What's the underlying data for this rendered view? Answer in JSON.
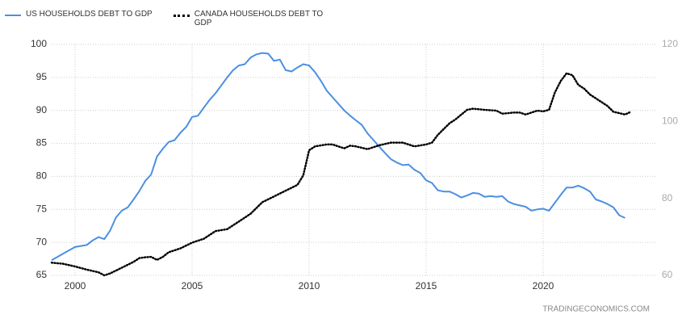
{
  "chart_data": {
    "type": "line",
    "source": "TRADINGECONOMICS.COM",
    "legend": "top-left",
    "grid": true,
    "xlim": [
      1999,
      2025
    ],
    "xticks": [
      2000,
      2005,
      2010,
      2015,
      2020
    ],
    "ylim": [
      65,
      100
    ],
    "yticks": [
      65,
      70,
      75,
      80,
      85,
      90,
      95,
      100
    ],
    "y2lim": [
      60,
      120
    ],
    "y2ticks": [
      60,
      80,
      100,
      120
    ],
    "series": [
      {
        "name": "US HOUSEHOLDS DEBT TO GDP",
        "color": "#4a90e2",
        "style": "solid",
        "x": [
          1999.0,
          1999.5,
          2000.0,
          2000.5,
          2000.75,
          2001.0,
          2001.25,
          2001.5,
          2001.75,
          2002.0,
          2002.25,
          2002.5,
          2002.75,
          2003.0,
          2003.25,
          2003.5,
          2003.75,
          2004.0,
          2004.25,
          2004.5,
          2004.75,
          2005.0,
          2005.25,
          2005.5,
          2005.75,
          2006.0,
          2006.25,
          2006.5,
          2006.75,
          2007.0,
          2007.25,
          2007.5,
          2007.75,
          2008.0,
          2008.25,
          2008.5,
          2008.75,
          2009.0,
          2009.25,
          2009.5,
          2009.75,
          2010.0,
          2010.25,
          2010.5,
          2010.75,
          2011.0,
          2011.5,
          2011.75,
          2012.0,
          2012.25,
          2012.5,
          2012.75,
          2013.0,
          2013.25,
          2013.5,
          2013.75,
          2014.0,
          2014.25,
          2014.5,
          2014.75,
          2015.0,
          2015.25,
          2015.5,
          2015.75,
          2016.0,
          2016.25,
          2016.5,
          2016.75,
          2017.0,
          2017.25,
          2017.5,
          2017.75,
          2018.0,
          2018.25,
          2018.5,
          2018.75,
          2019.0,
          2019.25,
          2019.5,
          2019.75,
          2020.0,
          2020.25,
          2020.5,
          2020.75,
          2021.0,
          2021.25,
          2021.5,
          2021.75,
          2022.0,
          2022.25,
          2022.5,
          2022.75,
          2023.0,
          2023.25,
          2023.5
        ],
        "values": [
          67.3,
          68.3,
          69.3,
          69.6,
          70.3,
          70.8,
          70.5,
          71.8,
          73.8,
          74.8,
          75.3,
          76.5,
          77.8,
          79.3,
          80.3,
          83.0,
          84.2,
          85.2,
          85.5,
          86.6,
          87.5,
          89.0,
          89.2,
          90.4,
          91.6,
          92.6,
          93.8,
          95.0,
          96.1,
          96.8,
          97.0,
          98.0,
          98.5,
          98.7,
          98.6,
          97.5,
          97.7,
          96.1,
          95.9,
          96.5,
          97.0,
          96.8,
          95.8,
          94.5,
          93.0,
          92.0,
          90.0,
          89.2,
          88.5,
          87.8,
          86.5,
          85.5,
          84.5,
          83.5,
          82.6,
          82.1,
          81.7,
          81.8,
          81.0,
          80.5,
          79.4,
          79.0,
          77.9,
          77.7,
          77.7,
          77.3,
          76.8,
          77.1,
          77.5,
          77.4,
          76.9,
          77.0,
          76.9,
          77.0,
          76.2,
          75.8,
          75.6,
          75.4,
          74.8,
          75.0,
          75.1,
          74.8,
          76.0,
          77.2,
          78.3,
          78.3,
          78.6,
          78.2,
          77.7,
          76.5,
          76.2,
          75.8,
          75.3,
          74.1,
          73.7
        ]
      },
      {
        "name": "CANADA HOUSEHOLDS DEBT TO GDP",
        "color": "#000000",
        "style": "dotted",
        "axis": "y2",
        "x": [
          1999.0,
          1999.5,
          2000.0,
          2000.5,
          2001.0,
          2001.25,
          2001.5,
          2002.0,
          2002.5,
          2002.75,
          2003.0,
          2003.25,
          2003.5,
          2003.75,
          2004.0,
          2004.5,
          2005.0,
          2005.5,
          2006.0,
          2006.5,
          2007.0,
          2007.5,
          2008.0,
          2008.5,
          2009.0,
          2009.5,
          2009.75,
          2010.0,
          2010.25,
          2010.75,
          2011.0,
          2011.5,
          2011.75,
          2012.0,
          2012.5,
          2013.0,
          2013.5,
          2014.0,
          2014.5,
          2015.0,
          2015.25,
          2015.5,
          2016.0,
          2016.25,
          2016.75,
          2017.0,
          2017.5,
          2018.0,
          2018.25,
          2018.75,
          2019.0,
          2019.25,
          2019.75,
          2020.0,
          2020.25,
          2020.5,
          2020.75,
          2021.0,
          2021.25,
          2021.5,
          2021.75,
          2022.0,
          2022.5,
          2022.75,
          2023.0,
          2023.5,
          2023.75
        ],
        "values": [
          63.3,
          63.0,
          62.3,
          61.5,
          60.8,
          60.0,
          60.5,
          62.0,
          63.5,
          64.5,
          64.7,
          64.8,
          64.0,
          64.8,
          66.0,
          67.0,
          68.5,
          69.5,
          71.5,
          72.0,
          74.0,
          76.0,
          79.0,
          80.5,
          82.0,
          83.5,
          86.0,
          92.5,
          93.5,
          94.0,
          94.0,
          93.0,
          93.7,
          93.5,
          92.8,
          93.8,
          94.5,
          94.5,
          93.5,
          94.0,
          94.5,
          96.5,
          99.5,
          100.5,
          103.0,
          103.3,
          103.0,
          102.8,
          102.0,
          102.3,
          102.3,
          101.8,
          102.8,
          102.6,
          103.0,
          107.5,
          110.5,
          112.5,
          112.0,
          109.5,
          108.5,
          107.0,
          105.0,
          104.0,
          102.5,
          101.8,
          102.5
        ]
      }
    ]
  }
}
